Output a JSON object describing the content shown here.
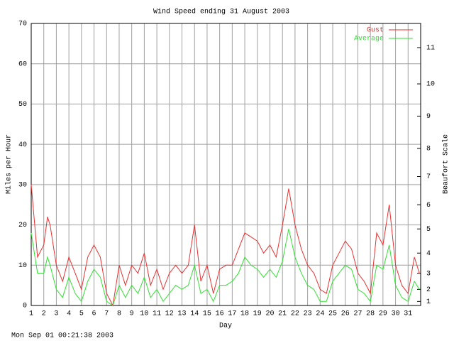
{
  "chart_data": {
    "type": "line",
    "title": "Wind Speed ending 31 August 2003",
    "x_label": "Day",
    "y_label": "Miles per Hour",
    "y2_label": "Beaufort Scale",
    "footer": "Mon Sep 01 00:21:38 2003",
    "x": [
      1,
      1.5,
      2,
      2.3,
      2.5,
      3,
      3.5,
      4,
      4.5,
      5,
      5.5,
      6,
      6.5,
      7,
      7.5,
      8,
      8.5,
      9,
      9.5,
      10,
      10.5,
      11,
      11.5,
      12,
      12.5,
      13,
      13.5,
      14,
      14.5,
      15,
      15.5,
      16,
      16.5,
      17,
      17.5,
      18,
      18.5,
      19,
      19.5,
      20,
      20.5,
      21,
      21.5,
      22,
      22.5,
      23,
      23.5,
      24,
      24.5,
      25,
      25.5,
      26,
      26.5,
      27,
      27.5,
      28,
      28.5,
      29,
      29.5,
      30,
      30.5,
      31,
      31.5,
      31.9
    ],
    "series": [
      {
        "name": "Gust",
        "color": "#e83030",
        "values": [
          30,
          12,
          15,
          22,
          20,
          10,
          6,
          12,
          8,
          4,
          12,
          15,
          12,
          3,
          0,
          10,
          5,
          10,
          8,
          13,
          5,
          9,
          4,
          8,
          10,
          8,
          10,
          20,
          6,
          10,
          3,
          9,
          10,
          10,
          14,
          18,
          17,
          16,
          13,
          15,
          12,
          20,
          29,
          20,
          14,
          10,
          8,
          4,
          3,
          10,
          13,
          16,
          14,
          8,
          6,
          3,
          18,
          15,
          25,
          10,
          5,
          3,
          12,
          8
        ]
      },
      {
        "name": "Average",
        "color": "#30e030",
        "values": [
          18,
          8,
          8,
          12,
          10,
          4,
          2,
          7,
          3,
          1,
          6,
          9,
          7,
          1,
          0,
          5,
          2,
          5,
          3,
          7,
          2,
          4,
          1,
          3,
          5,
          4,
          5,
          10,
          3,
          4,
          1,
          5,
          5,
          6,
          8,
          12,
          10,
          9,
          7,
          9,
          7,
          11,
          19,
          12,
          8,
          5,
          4,
          1,
          1,
          6,
          8,
          10,
          9,
          4,
          3,
          1,
          10,
          9,
          15,
          5,
          2,
          1,
          6,
          4
        ]
      }
    ],
    "xlim": [
      1,
      32
    ],
    "xticks": [
      1,
      2,
      3,
      4,
      5,
      6,
      7,
      8,
      9,
      10,
      11,
      12,
      13,
      14,
      15,
      16,
      17,
      18,
      19,
      20,
      21,
      22,
      23,
      24,
      25,
      26,
      27,
      28,
      29,
      30,
      31
    ],
    "ylim": [
      0,
      70
    ],
    "yticks": [
      0,
      10,
      20,
      30,
      40,
      50,
      60,
      70
    ],
    "y2lim": [
      0,
      70
    ],
    "y2ticks": [
      1,
      {
        "value": 4,
        "label": "2"
      },
      {
        "value": 8,
        "label": "3"
      },
      {
        "value": 13,
        "label": "4"
      },
      {
        "value": 19,
        "label": "5"
      },
      {
        "value": 25,
        "label": "6"
      },
      {
        "value": 32,
        "label": "7"
      },
      {
        "value": 39,
        "label": "8"
      },
      {
        "value": 47,
        "label": "9"
      },
      {
        "value": 55,
        "label": "10"
      },
      {
        "value": 64,
        "label": "11"
      }
    ],
    "grid": true,
    "legend": "top-right"
  }
}
